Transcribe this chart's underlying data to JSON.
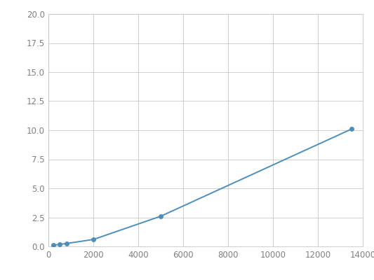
{
  "x": [
    200,
    500,
    800,
    2000,
    5000,
    13500
  ],
  "y": [
    0.1,
    0.18,
    0.25,
    0.6,
    2.6,
    10.1
  ],
  "line_color": "#4d8fba",
  "marker_color": "#4d8fba",
  "marker_size": 4,
  "xlim": [
    0,
    14000
  ],
  "ylim": [
    0,
    20
  ],
  "xticks": [
    0,
    2000,
    4000,
    6000,
    8000,
    10000,
    12000,
    14000
  ],
  "yticks": [
    0.0,
    2.5,
    5.0,
    7.5,
    10.0,
    12.5,
    15.0,
    17.5,
    20.0
  ],
  "grid_color": "#c8c8c8",
  "background_color": "#ffffff",
  "tick_label_color": "#808080",
  "tick_fontsize": 8.5
}
